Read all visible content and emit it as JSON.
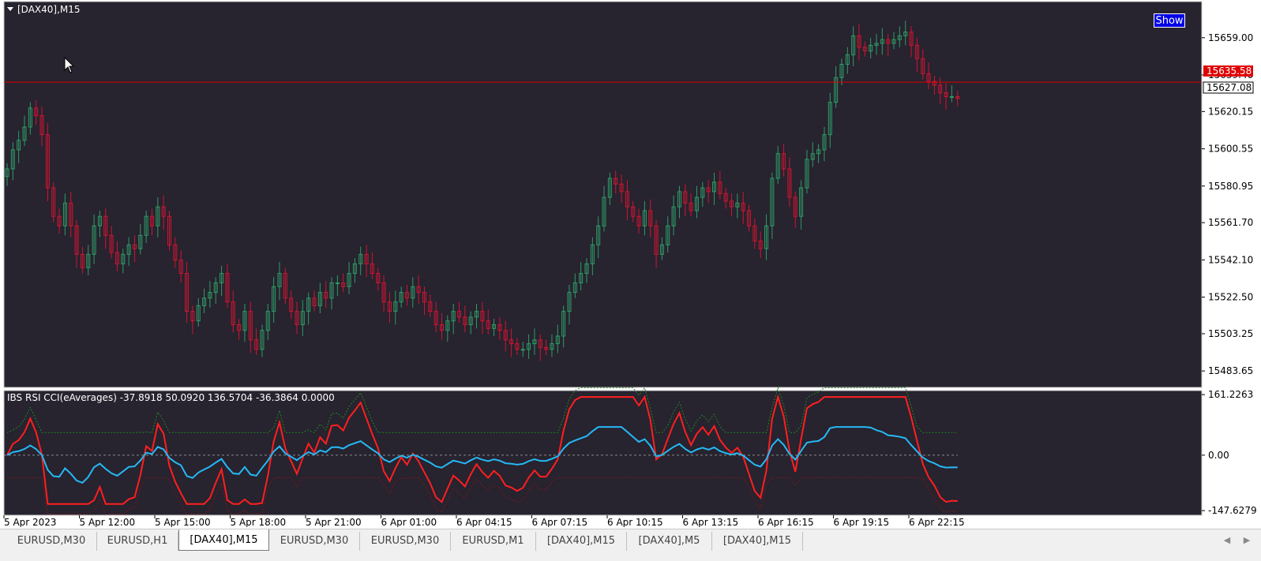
{
  "main_chart": {
    "title": "[DAX40],M15",
    "show_label": "Show",
    "price_levels": [
      "15659.00",
      "15639.40",
      "15620.15",
      "15600.55",
      "15580.95",
      "15561.70",
      "15542.10",
      "15522.50",
      "15503.25",
      "15483.65"
    ],
    "hline_label": "15635.58",
    "current_price_label": "15627.08",
    "colors": {
      "background": "#27232f",
      "bull": "#2e9d66",
      "bear": "#d21430",
      "hline": "#e00000"
    }
  },
  "indicator": {
    "title": "IBS RSI CCI(eAverages) -37.8918 50.0920 136.5704 -36.3864 0.0000",
    "levels": [
      "161.2263",
      "0.00",
      "-147.6279"
    ],
    "colors": {
      "rsi": "#25b9f5",
      "cci": "#ff1f1f",
      "upper": "#1f8a1f",
      "lower": "#7a1a1a",
      "zero": "#8a8a8a"
    }
  },
  "time_labels": [
    "5 Apr 2023",
    "5 Apr 12:00",
    "5 Apr 15:00",
    "5 Apr 18:00",
    "5 Apr 21:00",
    "6 Apr 01:00",
    "6 Apr 04:15",
    "6 Apr 07:15",
    "6 Apr 10:15",
    "6 Apr 13:15",
    "6 Apr 16:15",
    "6 Apr 19:15",
    "6 Apr 22:15"
  ],
  "tabs": [
    {
      "label": "EURUSD,M30",
      "active": false
    },
    {
      "label": "EURUSD,H1",
      "active": false
    },
    {
      "label": "[DAX40],M15",
      "active": true
    },
    {
      "label": "EURUSD,M30",
      "active": false
    },
    {
      "label": "EURUSD,M30",
      "active": false
    },
    {
      "label": "EURUSD,M1",
      "active": false
    },
    {
      "label": "[DAX40],M15",
      "active": false
    },
    {
      "label": "[DAX40],M5",
      "active": false
    },
    {
      "label": "[DAX40],M15",
      "active": false
    }
  ],
  "scroll": {
    "left_icon": "triangle-left-icon",
    "right_icon": "triangle-right-icon"
  },
  "chart_data": {
    "type": "candlestick",
    "symbol": "[DAX40]",
    "timeframe": "M15",
    "ylim": [
      15475,
      15678
    ],
    "closes": [
      15590,
      15600,
      15605,
      15612,
      15622,
      15618,
      15608,
      15580,
      15565,
      15560,
      15572,
      15560,
      15545,
      15538,
      15545,
      15560,
      15565,
      15555,
      15546,
      15540,
      15545,
      15550,
      15548,
      15555,
      15565,
      15560,
      15570,
      15565,
      15550,
      15542,
      15535,
      15515,
      15510,
      15518,
      15522,
      15525,
      15530,
      15535,
      15520,
      15508,
      15505,
      15515,
      15500,
      15495,
      15505,
      15515,
      15528,
      15535,
      15522,
      15515,
      15508,
      15515,
      15522,
      15518,
      15525,
      15522,
      15530,
      15530,
      15528,
      15535,
      15540,
      15545,
      15540,
      15535,
      15530,
      15520,
      15515,
      15520,
      15525,
      15522,
      15528,
      15525,
      15520,
      15515,
      15508,
      15505,
      15510,
      15515,
      15512,
      15508,
      15512,
      15515,
      15510,
      15506,
      15508,
      15505,
      15500,
      15498,
      15495,
      15495,
      15498,
      15500,
      15496,
      15495,
      15498,
      15502,
      15515,
      15525,
      15530,
      15535,
      15540,
      15550,
      15560,
      15575,
      15585,
      15582,
      15578,
      15570,
      15565,
      15560,
      15568,
      15560,
      15545,
      15550,
      15560,
      15570,
      15578,
      15572,
      15568,
      15575,
      15580,
      15578,
      15583,
      15577,
      15573,
      15570,
      15572,
      15568,
      15560,
      15552,
      15548,
      15560,
      15585,
      15598,
      15590,
      15575,
      15565,
      15580,
      15595,
      15598,
      15600,
      15608,
      15625,
      15638,
      15645,
      15650,
      15660,
      15654,
      15652,
      15655,
      15656,
      15658,
      15656,
      15658,
      15660,
      15662,
      15655,
      15648,
      15640,
      15636,
      15634,
      15630,
      15628,
      15628,
      15627
    ]
  }
}
